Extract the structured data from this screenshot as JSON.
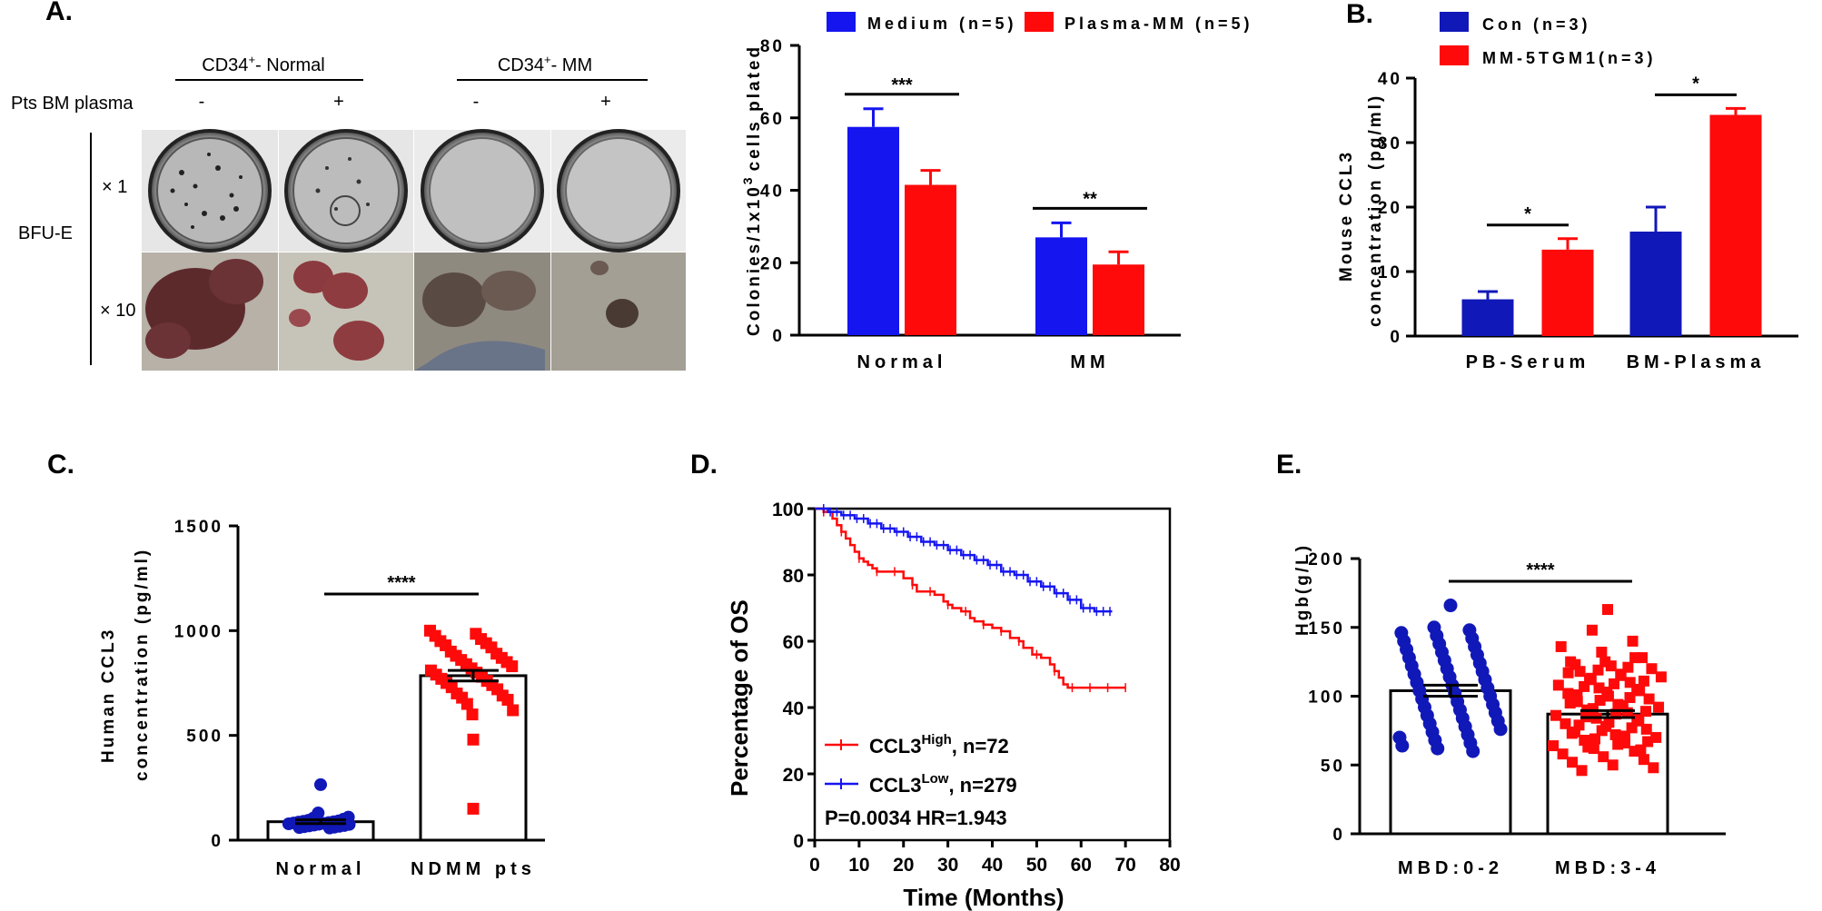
{
  "panels": {
    "A": "A.",
    "B": "B.",
    "C": "C.",
    "D": "D.",
    "E": "E."
  },
  "colors": {
    "blue": "#1515f0",
    "red": "#ff0a0a",
    "darkblue": "#1118b8",
    "black": "#000000"
  },
  "photo": {
    "col_group_normal": "CD34",
    "col_group_normal_sup": "+",
    "col_group_normal_suffix": "- Normal",
    "col_group_mm": "CD34",
    "col_group_mm_sup": "+",
    "col_group_mm_suffix": "- MM",
    "row_header": "Pts BM plasma",
    "signs": [
      "-",
      "+",
      "-",
      "+"
    ],
    "row_label": "BFU-E",
    "magnification": [
      "× 1",
      "× 10"
    ]
  },
  "chart_data": [
    {
      "id": "A-bar",
      "type": "bar",
      "ylabel": "Colonies/1x10",
      "ylabel_sup": "3",
      "ylabel_suffix": "cells plated",
      "ylim": [
        0,
        80
      ],
      "yticks": [
        "0",
        "20",
        "40",
        "60",
        "80"
      ],
      "categories": [
        "Normal",
        "MM"
      ],
      "series": [
        {
          "name": "Medium (n=5)",
          "values": [
            57.5,
            27
          ],
          "errors": [
            5,
            4
          ]
        },
        {
          "name": "Plasma-MM (n=5)",
          "values": [
            41.5,
            19.5
          ],
          "errors": [
            4,
            3.5
          ]
        }
      ],
      "significance": [
        "***",
        "**"
      ]
    },
    {
      "id": "B-bar",
      "type": "bar",
      "ylabel_line1": "Mouse CCL3",
      "ylabel_line2": "concentration (pg/ml)",
      "ylim": [
        0,
        40
      ],
      "yticks": [
        "0",
        "10",
        "20",
        "30",
        "40"
      ],
      "categories": [
        "PB-Serum",
        "BM-Plasma"
      ],
      "series": [
        {
          "name": "Con (n=3)",
          "values": [
            5.7,
            16.2
          ],
          "errors": [
            1.2,
            3.8
          ]
        },
        {
          "name": "MM-5TGM1(n=3)",
          "values": [
            13.4,
            34.3
          ],
          "errors": [
            1.7,
            1
          ]
        }
      ],
      "significance": [
        "*",
        "*"
      ]
    },
    {
      "id": "C-scatter",
      "type": "scatter",
      "ylabel_line1": "Human CCL3",
      "ylabel_line2": "concentration (pg/ml)",
      "ylim": [
        0,
        1500
      ],
      "yticks": [
        "0",
        "500",
        "1000",
        "1500"
      ],
      "categories": [
        "Normal",
        "NDMM pts"
      ],
      "means": [
        88,
        785
      ],
      "sems": [
        9,
        25
      ],
      "points_normal": [
        265,
        130,
        110,
        105,
        100,
        95,
        92,
        90,
        88,
        86,
        84,
        82,
        80,
        78,
        76,
        75,
        72,
        70,
        68,
        66,
        64,
        62,
        60,
        58
      ],
      "points_ndmm": [
        1000,
        985,
        975,
        960,
        950,
        940,
        930,
        920,
        900,
        890,
        880,
        870,
        860,
        850,
        840,
        830,
        820,
        810,
        800,
        790,
        780,
        770,
        760,
        750,
        740,
        730,
        720,
        700,
        690,
        680,
        670,
        650,
        620,
        600,
        480,
        150
      ],
      "significance": "****"
    },
    {
      "id": "D-km",
      "type": "line",
      "ylabel": "Percentage of OS",
      "xlabel": "Time (Months)",
      "xlim": [
        0,
        80
      ],
      "ylim": [
        0,
        100
      ],
      "xticks": [
        "0",
        "10",
        "20",
        "30",
        "40",
        "50",
        "60",
        "70",
        "80"
      ],
      "yticks": [
        "0",
        "20",
        "40",
        "60",
        "80",
        "100"
      ],
      "series": [
        {
          "name": "CCL3",
          "sup": "High",
          "suffix": ", n=72",
          "x": [
            0,
            2,
            4,
            5,
            6,
            7,
            8,
            9,
            10,
            11,
            12,
            13,
            14,
            15,
            17,
            20,
            22,
            23,
            24,
            27,
            29,
            30,
            31,
            33,
            35,
            36,
            38,
            40,
            42,
            44,
            46,
            47,
            49,
            51,
            53,
            54,
            55,
            56,
            57,
            70
          ],
          "y": [
            100,
            99,
            97,
            95,
            93,
            91,
            89,
            87,
            85,
            84,
            83,
            82,
            81,
            81,
            81,
            79,
            77,
            75,
            75,
            74,
            72,
            71,
            70,
            69,
            67,
            66,
            65,
            64,
            63,
            61,
            60,
            58,
            56,
            55,
            53,
            51,
            49,
            47,
            46,
            46
          ]
        },
        {
          "name": "CCL3",
          "sup": "Low",
          "suffix": ", n=279",
          "x": [
            0,
            3,
            6,
            9,
            12,
            15,
            18,
            21,
            24,
            27,
            30,
            33,
            36,
            39,
            42,
            45,
            48,
            51,
            54,
            57,
            60,
            63,
            67
          ],
          "y": [
            100,
            99,
            98,
            97,
            95.5,
            94,
            93,
            91.5,
            90,
            89,
            87.5,
            86,
            84.5,
            83,
            81,
            80,
            78,
            76.5,
            74.5,
            72.5,
            70,
            69,
            69
          ]
        }
      ],
      "annotation": "P=0.0034 HR=1.943"
    },
    {
      "id": "E-scatter",
      "type": "scatter",
      "ylabel": "Hgb(g/L)",
      "ylim": [
        0,
        200
      ],
      "yticks": [
        "0",
        "50",
        "100",
        "150",
        "200"
      ],
      "categories": [
        "MBD:0-2",
        "MBD:3-4"
      ],
      "means": [
        104,
        87
      ],
      "sems": [
        4,
        2.5
      ],
      "points_a": [
        166,
        150,
        148,
        146,
        144,
        142,
        140,
        138,
        136,
        134,
        132,
        130,
        128,
        126,
        124,
        122,
        120,
        118,
        116,
        114,
        112,
        110,
        108,
        106,
        104,
        102,
        100,
        98,
        96,
        94,
        92,
        90,
        88,
        86,
        84,
        82,
        80,
        78,
        76,
        74,
        72,
        70,
        68,
        66,
        64,
        62,
        60
      ],
      "points_b": [
        163,
        148,
        140,
        136,
        132,
        128,
        125,
        122,
        120,
        118,
        116,
        114,
        112,
        110,
        108,
        106,
        104,
        102,
        100,
        98,
        96,
        94,
        92,
        90,
        88,
        86,
        84,
        82,
        80,
        78,
        76,
        74,
        72,
        70,
        68,
        66,
        64,
        62,
        60,
        58,
        56,
        54,
        52,
        50,
        48,
        46
      ],
      "significance": "****"
    }
  ]
}
